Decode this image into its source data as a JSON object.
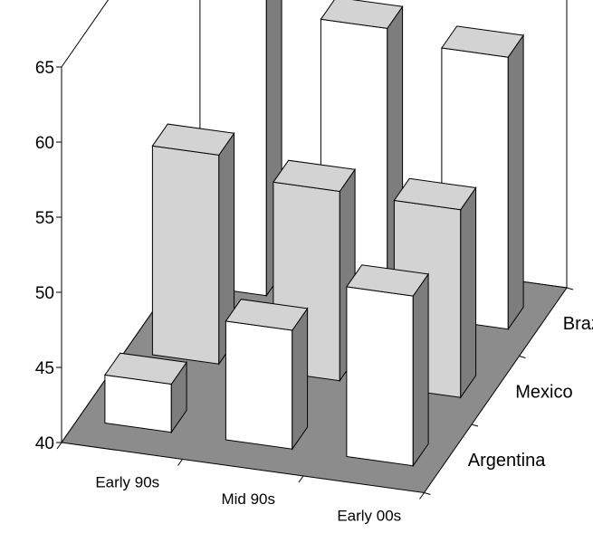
{
  "chart_data": {
    "type": "bar",
    "subtype": "3d-bar",
    "title": "",
    "xlabel": "",
    "ylabel": "",
    "categories": [
      "Early 90s",
      "Mid 90s",
      "Early 00s"
    ],
    "series": [
      {
        "name": "Argentina",
        "values": [
          43.2,
          47.9,
          51.3
        ]
      },
      {
        "name": "Mexico",
        "values": [
          53.9,
          52.6,
          52.5
        ]
      },
      {
        "name": "Brazil",
        "values": [
          59.9,
          58.9,
          58.1
        ]
      }
    ],
    "ylim": [
      40,
      65
    ],
    "yticks": [
      40,
      45,
      50,
      55,
      60,
      65
    ],
    "grid": false,
    "legend": "none",
    "colors": {
      "floor": "#8c8c8c",
      "bar_light": "#ffffff",
      "bar_shade": "#d3d3d3",
      "bar_side": "#7d7d7d",
      "outline": "#000000"
    }
  }
}
